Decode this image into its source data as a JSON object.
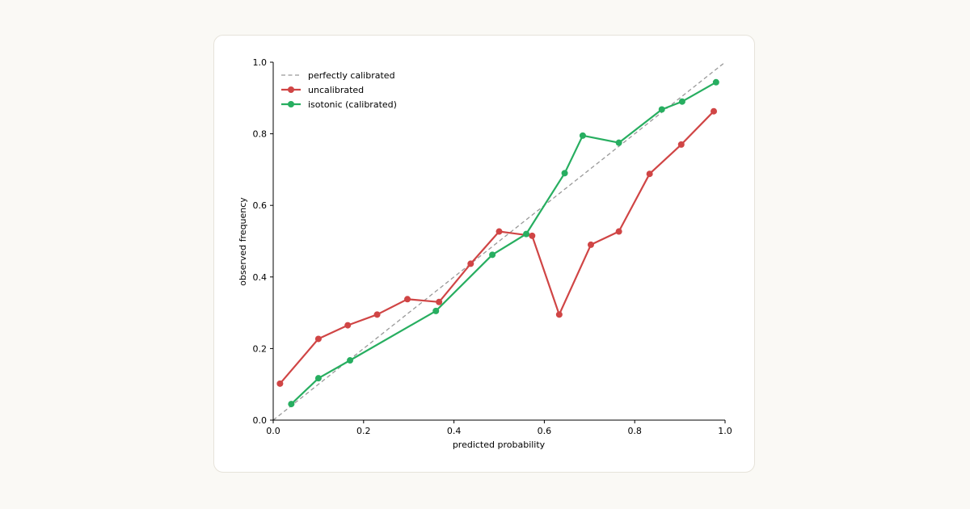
{
  "chart_data": {
    "type": "line",
    "title": "",
    "xlabel": "predicted probability",
    "ylabel": "observed frequency",
    "xlim": [
      0.0,
      1.0
    ],
    "ylim": [
      0.0,
      1.0
    ],
    "x_ticks": [
      "0.0",
      "0.2",
      "0.4",
      "0.6",
      "0.8",
      "1.0"
    ],
    "y_ticks": [
      "0.0",
      "0.2",
      "0.4",
      "0.6",
      "0.8",
      "1.0"
    ],
    "grid": false,
    "legend_position": "top-left",
    "reference_line": {
      "name": "perfectly calibrated",
      "x": [
        0.0,
        1.0
      ],
      "y": [
        0.0,
        1.0
      ],
      "color": "#999999",
      "style": "dashed"
    },
    "series": [
      {
        "name": "uncalibrated",
        "color": "#d04545",
        "x": [
          0.015,
          0.1,
          0.165,
          0.23,
          0.297,
          0.367,
          0.437,
          0.5,
          0.573,
          0.633,
          0.703,
          0.765,
          0.833,
          0.903,
          0.975
        ],
        "y": [
          0.102,
          0.227,
          0.265,
          0.295,
          0.338,
          0.33,
          0.437,
          0.527,
          0.515,
          0.295,
          0.49,
          0.527,
          0.688,
          0.77,
          0.863
        ]
      },
      {
        "name": "isotonic (calibrated)",
        "color": "#27ae60",
        "x": [
          0.04,
          0.1,
          0.17,
          0.36,
          0.485,
          0.56,
          0.645,
          0.685,
          0.765,
          0.86,
          0.905,
          0.98
        ],
        "y": [
          0.045,
          0.117,
          0.167,
          0.305,
          0.462,
          0.52,
          0.69,
          0.795,
          0.775,
          0.868,
          0.89,
          0.944
        ]
      }
    ]
  }
}
